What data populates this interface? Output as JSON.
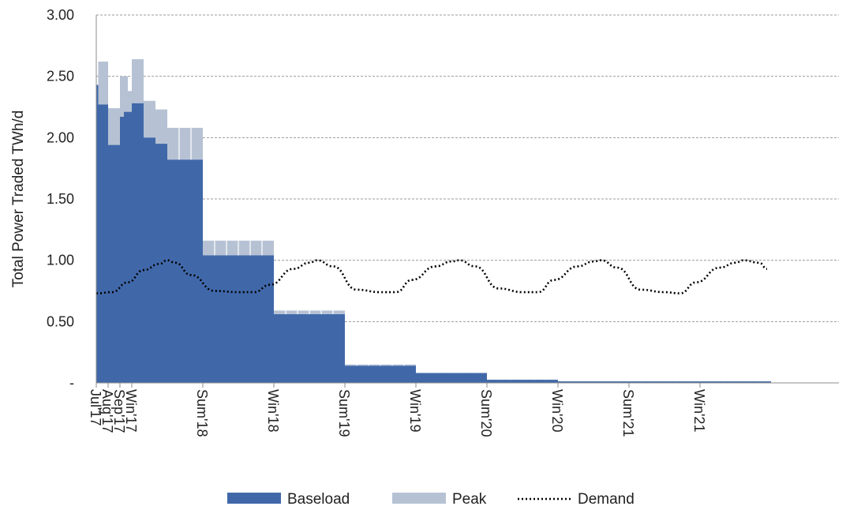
{
  "chart_data": {
    "type": "area",
    "ylabel": "Total Power Traded TWh/d",
    "ylim": [
      0,
      3.0
    ],
    "y_ticks": [
      "-",
      "0.50",
      "1.00",
      "1.50",
      "2.00",
      "2.50",
      "3.00"
    ],
    "y_tick_values": [
      0,
      0.5,
      1.0,
      1.5,
      2.0,
      2.5,
      3.0
    ],
    "grid": "horizontal dashed",
    "legend_position": "bottom-center",
    "x_ticks": [
      {
        "label": "Jul'17",
        "x": 0
      },
      {
        "label": "Aug'17",
        "x": 3
      },
      {
        "label": "Sep'17",
        "x": 6
      },
      {
        "label": "Win'17",
        "x": 9
      },
      {
        "label": "Sum'18",
        "x": 27
      },
      {
        "label": "Win'18",
        "x": 45
      },
      {
        "label": "Sum'19",
        "x": 63
      },
      {
        "label": "Win'19",
        "x": 81
      },
      {
        "label": "Sum'20",
        "x": 99
      },
      {
        "label": "Win'20",
        "x": 117
      },
      {
        "label": "Sum'21",
        "x": 135
      },
      {
        "label": "Win'21",
        "x": 153
      }
    ],
    "x_range": [
      0,
      186
    ],
    "series": [
      {
        "name": "Baseload",
        "color": "#4068a9",
        "kind": "step-area",
        "segments": [
          {
            "x0": 0,
            "x1": 0.5,
            "y": 2.43
          },
          {
            "x0": 0.5,
            "x1": 3,
            "y": 2.27
          },
          {
            "x0": 3,
            "x1": 6,
            "y": 1.94
          },
          {
            "x0": 6,
            "x1": 7,
            "y": 2.17
          },
          {
            "x0": 7,
            "x1": 9,
            "y": 2.21
          },
          {
            "x0": 9,
            "x1": 12,
            "y": 2.28
          },
          {
            "x0": 12,
            "x1": 15,
            "y": 2.0
          },
          {
            "x0": 15,
            "x1": 18,
            "y": 1.95
          },
          {
            "x0": 18,
            "x1": 27,
            "y": 1.82
          },
          {
            "x0": 27,
            "x1": 45,
            "y": 1.04
          },
          {
            "x0": 45,
            "x1": 63,
            "y": 0.56
          },
          {
            "x0": 63,
            "x1": 81,
            "y": 0.14
          },
          {
            "x0": 81,
            "x1": 99,
            "y": 0.08
          },
          {
            "x0": 99,
            "x1": 117,
            "y": 0.025
          },
          {
            "x0": 117,
            "x1": 171,
            "y": 0.012
          }
        ]
      },
      {
        "name": "Peak",
        "color": "#b6c2d4",
        "kind": "step-area-stacked",
        "segments": [
          {
            "x0": 0.5,
            "x1": 3,
            "y": 2.62
          },
          {
            "x0": 3,
            "x1": 6,
            "y": 2.24
          },
          {
            "x0": 6,
            "x1": 8,
            "y": 2.5
          },
          {
            "x0": 8,
            "x1": 9,
            "y": 2.38
          },
          {
            "x0": 9,
            "x1": 12,
            "y": 2.64
          },
          {
            "x0": 12,
            "x1": 15,
            "y": 2.3
          },
          {
            "x0": 15,
            "x1": 18,
            "y": 2.23
          },
          {
            "x0": 18,
            "x1": 27,
            "y": 2.08
          },
          {
            "x0": 27,
            "x1": 45,
            "y": 1.16
          },
          {
            "x0": 45,
            "x1": 63,
            "y": 0.59
          },
          {
            "x0": 63,
            "x1": 81,
            "y": 0.15
          },
          {
            "x0": 81,
            "x1": 99,
            "y": 0.082
          },
          {
            "x0": 99,
            "x1": 117,
            "y": 0.027
          },
          {
            "x0": 117,
            "x1": 171,
            "y": 0.014
          }
        ]
      },
      {
        "name": "Demand",
        "color": "#000000",
        "kind": "dotted-line",
        "x": [
          0,
          4,
          8,
          12,
          16,
          18,
          20,
          24,
          30,
          36,
          40,
          44,
          50,
          54,
          56,
          60,
          66,
          72,
          76,
          80,
          86,
          90,
          92,
          96,
          102,
          108,
          112,
          116,
          122,
          126,
          128,
          132,
          138,
          144,
          148,
          152,
          158,
          162,
          164,
          168,
          170
        ],
        "values": [
          0.73,
          0.74,
          0.82,
          0.92,
          0.97,
          1.0,
          0.98,
          0.88,
          0.75,
          0.74,
          0.74,
          0.8,
          0.93,
          0.98,
          1.0,
          0.95,
          0.76,
          0.74,
          0.74,
          0.84,
          0.95,
          0.99,
          1.0,
          0.95,
          0.77,
          0.74,
          0.74,
          0.84,
          0.95,
          0.99,
          1.0,
          0.94,
          0.76,
          0.74,
          0.73,
          0.82,
          0.94,
          0.98,
          1.0,
          0.98,
          0.93
        ]
      }
    ],
    "legend": [
      {
        "label": "Baseload",
        "style": "box",
        "color": "#4068a9"
      },
      {
        "label": "Peak",
        "style": "box",
        "color": "#b6c2d4"
      },
      {
        "label": "Demand",
        "style": "dotted",
        "color": "#000000"
      }
    ]
  }
}
